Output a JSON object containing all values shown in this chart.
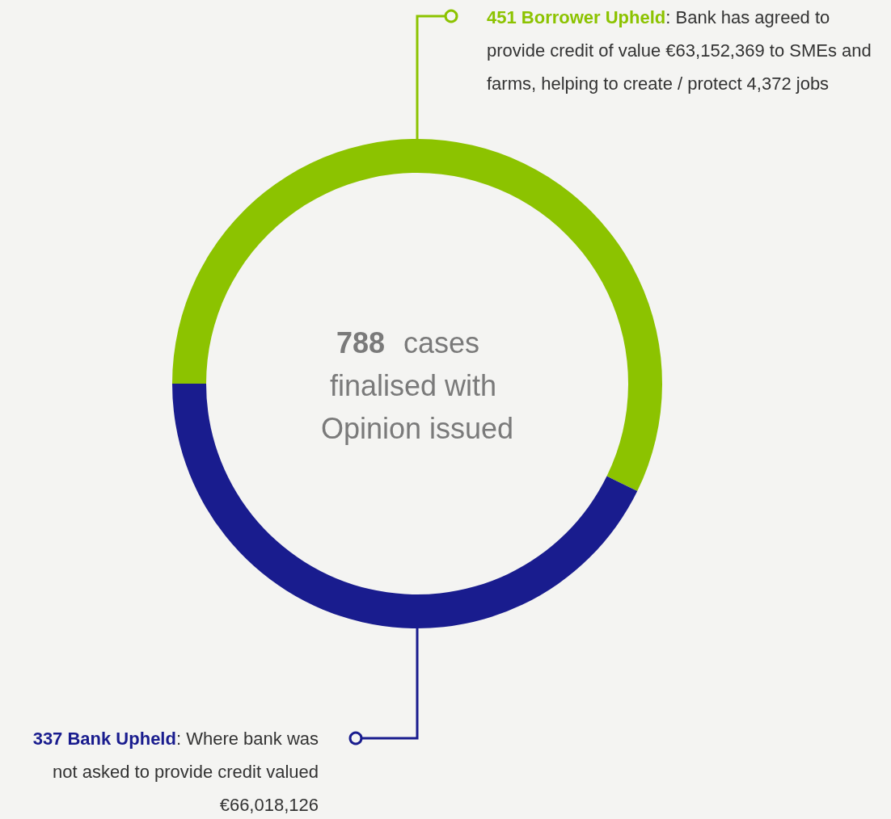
{
  "chart_data": {
    "type": "donut",
    "categories": [
      "Borrower Upheld",
      "Bank Upheld"
    ],
    "values": [
      451,
      337
    ],
    "colors": [
      "#8cc300",
      "#191c8e"
    ],
    "data_labels": true,
    "legend": false,
    "annotations": [
      "788 cases finalised with Opinion issued",
      ": Bank has agreed to provide credit of value €63,152,369 to SMEs and farms, helping to create / protect 4,372 jobs",
      ": Where bank was not asked to provide credit valued €66,018,126"
    ]
  }
}
